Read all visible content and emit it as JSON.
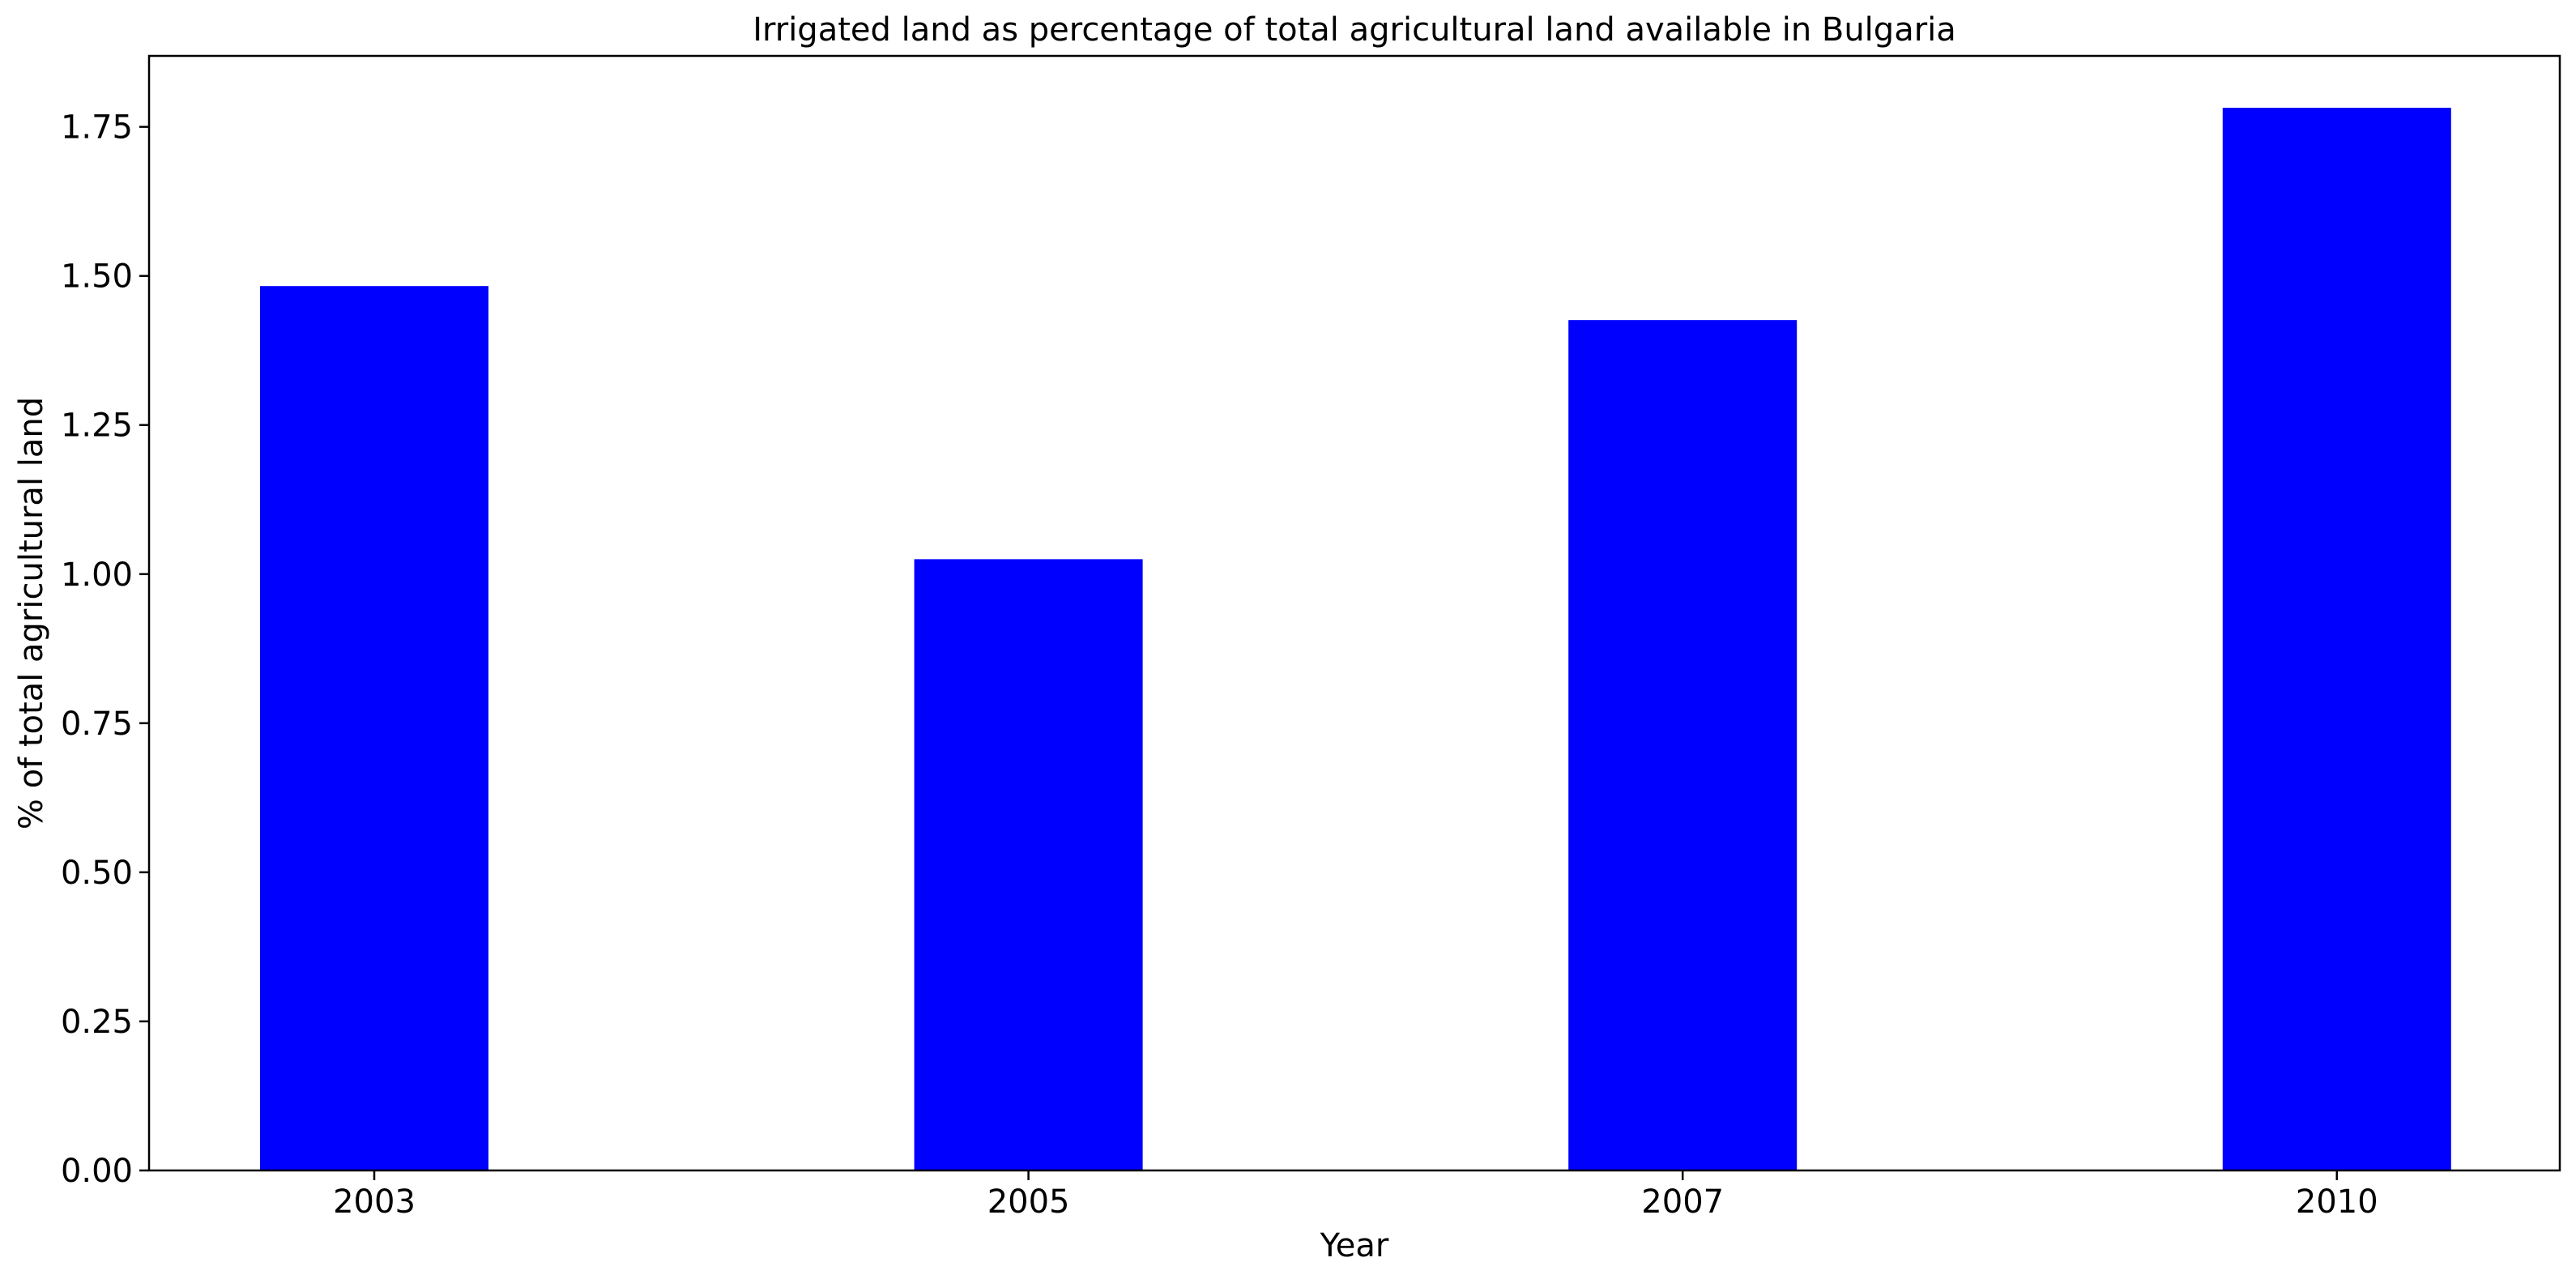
{
  "chart_data": {
    "type": "bar",
    "title": "Irrigated land as percentage of total agricultural land available in Bulgaria",
    "xlabel": "Year",
    "ylabel": "% of total agricultural land",
    "categories": [
      "2003",
      "2005",
      "2007",
      "2010"
    ],
    "values": [
      1.483,
      1.025,
      1.426,
      1.782
    ],
    "ylim": [
      0,
      1.869
    ],
    "yticks": [
      "0.00",
      "0.25",
      "0.50",
      "0.75",
      "1.00",
      "1.25",
      "1.50",
      "1.75"
    ],
    "bar_color": "#0000ff",
    "grid": false,
    "legend": "none"
  }
}
